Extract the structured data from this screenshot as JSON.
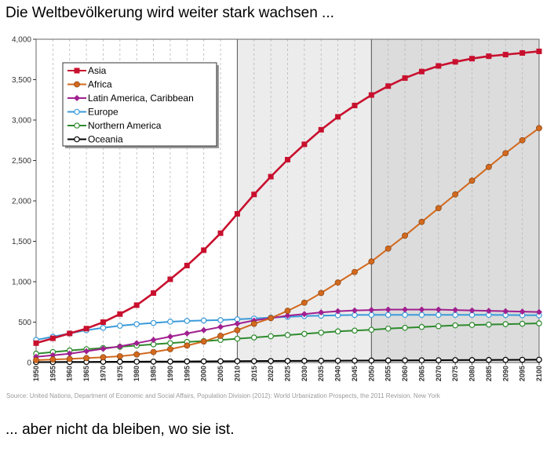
{
  "headline": "Die Weltbevölkerung wird weiter stark wachsen ...",
  "footline": "... aber nicht da bleiben, wo sie ist.",
  "source": "Source: United Nations, Department of Economic and Social Affairs, Population Division (2012): World Urbanization Prospects, the 2011 Revision. New York",
  "chart_data": {
    "type": "line",
    "title": "",
    "xlabel": "",
    "ylabel": "",
    "xlim": [
      1950,
      2100
    ],
    "ylim": [
      0,
      4000
    ],
    "yticks": [
      0,
      500,
      1000,
      1500,
      2000,
      2500,
      3000,
      3500,
      4000
    ],
    "ytick_labels": [
      "0",
      "500",
      "1,000",
      "1,500",
      "2,000",
      "2,500",
      "3,000",
      "3,500",
      "4,000"
    ],
    "x": [
      1950,
      1955,
      1960,
      1965,
      1970,
      1975,
      1980,
      1985,
      1990,
      1995,
      2000,
      2005,
      2010,
      2015,
      2020,
      2025,
      2030,
      2035,
      2040,
      2045,
      2050,
      2055,
      2060,
      2065,
      2070,
      2075,
      2080,
      2085,
      2090,
      2095,
      2100
    ],
    "grid": "vertical",
    "shaded_regions": [
      {
        "from": 2010,
        "to": 2100,
        "color": "#ececec"
      },
      {
        "from": 2050,
        "to": 2100,
        "color": "#dcdcdc"
      }
    ],
    "legend_position": "top-left",
    "series": [
      {
        "name": "Asia",
        "color": "#c8102e",
        "marker": "square",
        "values": [
          240,
          300,
          360,
          420,
          500,
          600,
          710,
          860,
          1030,
          1200,
          1390,
          1600,
          1840,
          2080,
          2300,
          2510,
          2700,
          2880,
          3040,
          3180,
          3310,
          3420,
          3520,
          3600,
          3670,
          3720,
          3760,
          3790,
          3810,
          3830,
          3850
        ]
      },
      {
        "name": "Africa",
        "color": "#d2691e",
        "marker": "circle",
        "values": [
          30,
          38,
          45,
          55,
          65,
          78,
          100,
          130,
          165,
          210,
          260,
          330,
          400,
          480,
          550,
          640,
          740,
          860,
          990,
          1120,
          1250,
          1410,
          1570,
          1740,
          1910,
          2080,
          2250,
          2420,
          2590,
          2750,
          2900
        ]
      },
      {
        "name": "Latin America, Caribbean",
        "color": "#a0208f",
        "marker": "diamond",
        "values": [
          70,
          90,
          110,
          140,
          170,
          200,
          240,
          280,
          320,
          360,
          400,
          440,
          480,
          520,
          550,
          580,
          600,
          620,
          635,
          645,
          650,
          655,
          655,
          655,
          655,
          650,
          645,
          640,
          635,
          630,
          625
        ]
      },
      {
        "name": "Europe",
        "color": "#3a9ad9",
        "marker": "circle-open",
        "values": [
          280,
          320,
          360,
          400,
          430,
          455,
          475,
          490,
          505,
          515,
          520,
          525,
          535,
          545,
          555,
          565,
          575,
          580,
          585,
          588,
          590,
          590,
          590,
          590,
          590,
          590,
          590,
          590,
          588,
          586,
          585
        ]
      },
      {
        "name": "Northern America",
        "color": "#2e8b2e",
        "marker": "circle-open",
        "values": [
          110,
          130,
          150,
          165,
          180,
          195,
          210,
          225,
          240,
          255,
          265,
          280,
          295,
          310,
          325,
          340,
          355,
          370,
          385,
          395,
          405,
          420,
          430,
          440,
          450,
          460,
          465,
          470,
          475,
          480,
          485
        ]
      },
      {
        "name": "Oceania",
        "color": "#000000",
        "marker": "circle-open",
        "values": [
          5,
          6,
          7,
          8,
          9,
          10,
          11,
          12,
          13,
          14,
          15,
          16,
          17,
          18,
          19,
          20,
          21,
          22,
          23,
          24,
          25,
          26,
          27,
          28,
          29,
          30,
          31,
          32,
          33,
          34,
          35
        ]
      }
    ]
  }
}
